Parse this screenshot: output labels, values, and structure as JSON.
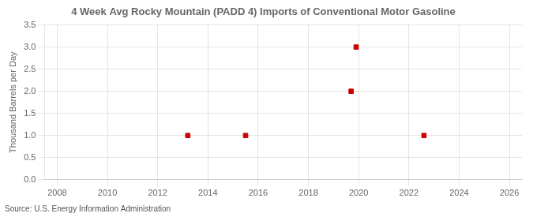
{
  "chart_data": {
    "type": "scatter",
    "title": "4 Week Avg Rocky Mountain (PADD 4) Imports of Conventional Motor Gasoline",
    "ylabel": "Thousand Barrels per Day",
    "source": "Source: U.S. Energy Information Administration",
    "x": [
      2013.2,
      2015.5,
      2019.7,
      2019.9,
      2022.6
    ],
    "values": [
      1.0,
      1.0,
      2.0,
      3.0,
      1.0
    ],
    "color": "#cc0000",
    "marker": "square",
    "xlim": [
      2007.5,
      2026.5
    ],
    "xticks": [
      2008,
      2010,
      2012,
      2014,
      2016,
      2018,
      2020,
      2022,
      2024,
      2026
    ],
    "ylim": [
      0.0,
      3.5
    ],
    "yticks": [
      {
        "value": 0.0,
        "label": "0.0"
      },
      0.5,
      {
        "value": 1.0,
        "label": "1.0"
      },
      1.5,
      {
        "value": 2.0,
        "label": "2.0"
      },
      2.5,
      {
        "value": 3.0,
        "label": "3.0"
      },
      3.5
    ],
    "grid": true
  }
}
